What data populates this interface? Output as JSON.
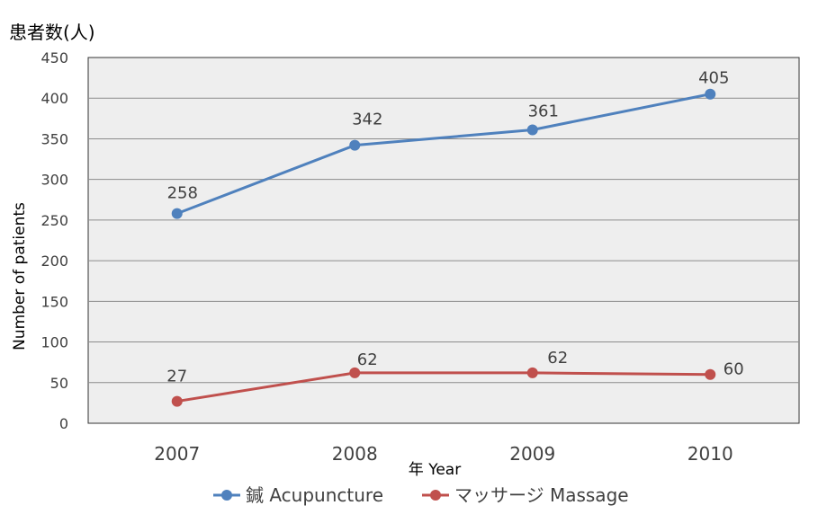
{
  "chart_data": {
    "type": "line",
    "categories": [
      "2007",
      "2008",
      "2009",
      "2010"
    ],
    "ylim": [
      0,
      450
    ],
    "yticks": [
      0,
      50,
      100,
      150,
      200,
      250,
      300,
      350,
      400,
      450
    ],
    "ylabel": "Number of patients",
    "ylabel_jp": "患者数(人)",
    "xlabel": "年 Year",
    "grid": true,
    "legend_position": "bottom",
    "series": [
      {
        "name": "鍼 Acupuncture",
        "color": "#4f81bd",
        "values": [
          258,
          342,
          361,
          405
        ]
      },
      {
        "name": "マッサージ Massage",
        "color": "#c0504d",
        "values": [
          27,
          62,
          62,
          60
        ]
      }
    ]
  }
}
